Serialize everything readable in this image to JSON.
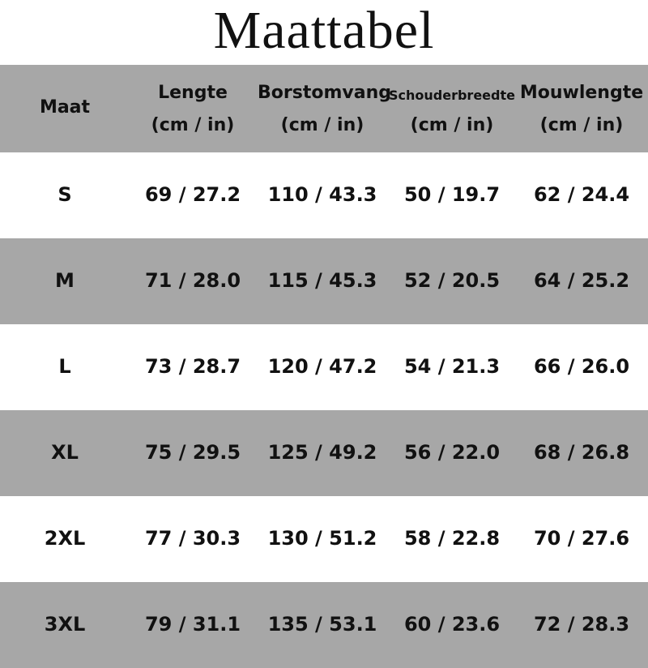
{
  "title": "Maattabel",
  "header": [
    {
      "name": "Maat"
    },
    {
      "name": "Lengte",
      "unit": "(cm / in)"
    },
    {
      "name": "Borstomvang",
      "unit": "(cm / in)"
    },
    {
      "name": "Schouderbreedte",
      "unit": "(cm / in)"
    },
    {
      "name": "Mouwlengte",
      "unit": "(cm / in)"
    }
  ],
  "rows": [
    [
      "S",
      "69 / 27.2",
      "110 / 43.3",
      "50 / 19.7",
      "62 / 24.4"
    ],
    [
      "M",
      "71 / 28.0",
      "115 / 45.3",
      "52 / 20.5",
      "64 / 25.2"
    ],
    [
      "L",
      "73 / 28.7",
      "120 / 47.2",
      "54 / 21.3",
      "66 / 26.0"
    ],
    [
      "XL",
      "75 / 29.5",
      "125 / 49.2",
      "56 / 22.0",
      "68 / 26.8"
    ],
    [
      "2XL",
      "77 / 30.3",
      "130 / 51.2",
      "58 / 22.8",
      "70 / 27.6"
    ],
    [
      "3XL",
      "79 / 31.1",
      "135 / 53.1",
      "60 / 23.6",
      "72 / 28.3"
    ]
  ]
}
